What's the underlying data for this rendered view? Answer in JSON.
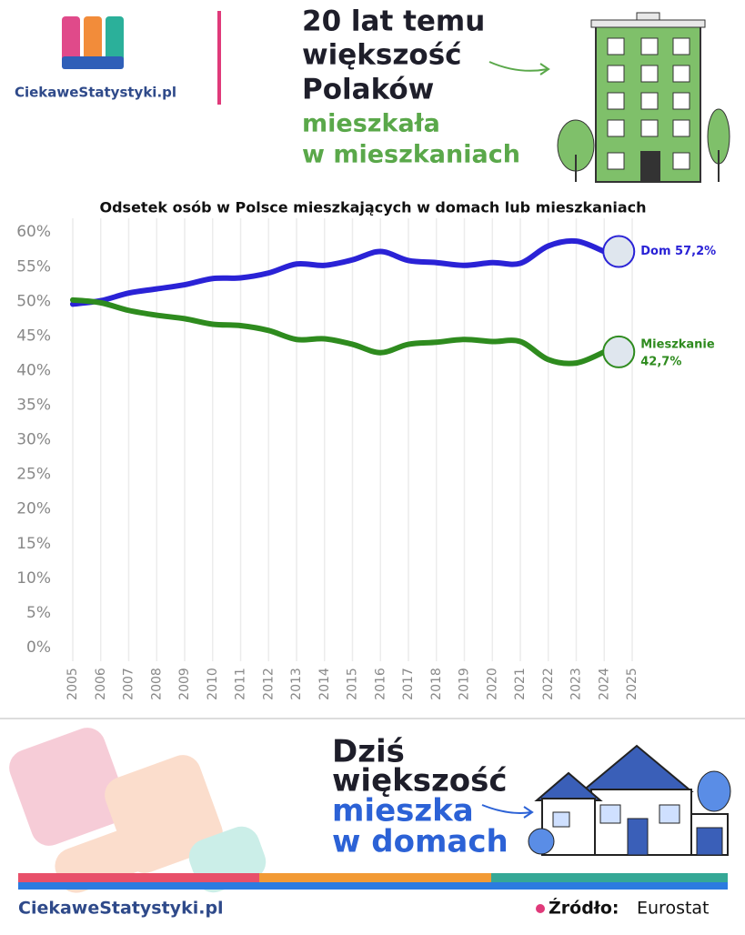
{
  "header": {
    "logo": "CiekaweStatystyki.pl",
    "headline": [
      "20 lat temu",
      "większość",
      "Polaków",
      "mieszkała",
      "w mieszkaniach"
    ]
  },
  "chart_data": {
    "type": "line",
    "title": "Odsetek osób w Polsce mieszkających w domach lub mieszkaniach",
    "categories": [
      "2005",
      "2006",
      "2007",
      "2008",
      "2009",
      "2010",
      "2011",
      "2012",
      "2013",
      "2014",
      "2015",
      "2016",
      "2017",
      "2018",
      "2019",
      "2020",
      "2021",
      "2022",
      "2023",
      "2024",
      "2025"
    ],
    "series": [
      {
        "name": "Dom",
        "color": "#2a22d6",
        "end_label": [
          "Dom 57,2%"
        ],
        "values": [
          49.6,
          50.1,
          51.2,
          51.8,
          52.4,
          53.3,
          53.4,
          54.1,
          55.4,
          55.2,
          56.0,
          57.2,
          55.9,
          55.6,
          55.2,
          55.6,
          55.5,
          58.0,
          58.7,
          57.2,
          null
        ]
      },
      {
        "name": "Mieszkanie",
        "color": "#2e8b1e",
        "end_label": [
          "Mieszkanie",
          "42,7%"
        ],
        "values": [
          50.2,
          49.8,
          48.7,
          48.0,
          47.5,
          46.7,
          46.5,
          45.8,
          44.5,
          44.6,
          43.8,
          42.6,
          43.8,
          44.1,
          44.5,
          44.2,
          44.2,
          41.6,
          41.1,
          42.7,
          null
        ]
      }
    ],
    "ylim": [
      0,
      62
    ],
    "yticks": [
      {
        "value": 0,
        "label": "0%"
      },
      {
        "value": 5,
        "label": "5%"
      },
      {
        "value": 10,
        "label": "10%"
      },
      {
        "value": 15,
        "label": "15%"
      },
      {
        "value": 20,
        "label": "20%"
      },
      {
        "value": 25,
        "label": "25%"
      },
      {
        "value": 30,
        "label": "30%"
      },
      {
        "value": 35,
        "label": "35%"
      },
      {
        "value": 40,
        "label": "40%"
      },
      {
        "value": 45,
        "label": "45%"
      },
      {
        "value": 50,
        "label": "50%"
      },
      {
        "value": 55,
        "label": "55%"
      },
      {
        "value": 60,
        "label": "60%"
      }
    ],
    "grid": "x"
  },
  "footer": {
    "headline": [
      "Dziś",
      "większość",
      "mieszka",
      "w domach"
    ],
    "logo": "CiekaweStatystyki.pl",
    "source_label": "Źródło:",
    "source": "Eurostat"
  }
}
